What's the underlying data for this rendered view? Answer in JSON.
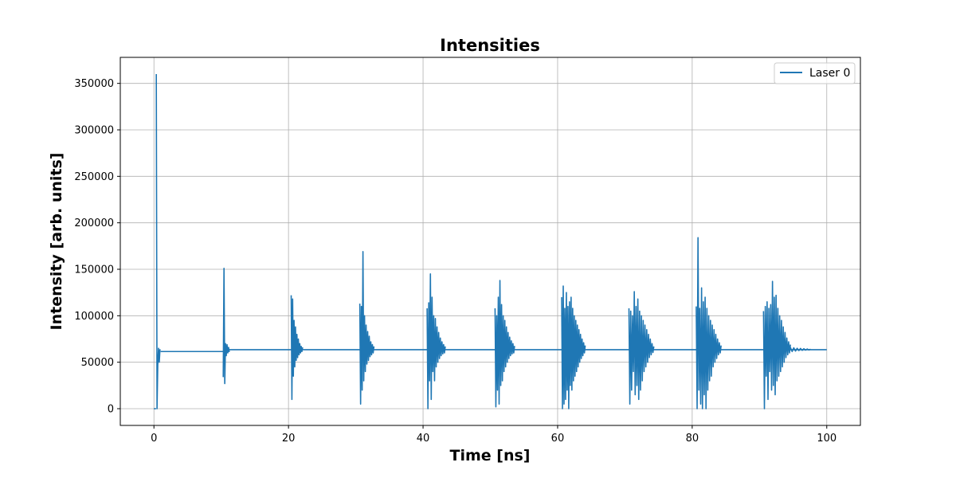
{
  "chart_data": {
    "type": "line",
    "title": "Intensities",
    "xlabel": "Time [ns]",
    "ylabel": "Intensity [arb. units]",
    "xlim": [
      -5,
      105
    ],
    "ylim": [
      -18000,
      378000
    ],
    "xticks": [
      0,
      20,
      40,
      60,
      80,
      100
    ],
    "yticks": [
      0,
      50000,
      100000,
      150000,
      200000,
      250000,
      300000,
      350000
    ],
    "grid": true,
    "legend_position": "top-right",
    "series": [
      {
        "name": "Laser 0",
        "color": "#1f77b4",
        "baseline_segments": [
          {
            "x": [
              0,
              0.3
            ],
            "y": 0
          },
          {
            "x": [
              1.0,
              10.3
            ],
            "y": 61500
          },
          {
            "x": [
              10.3,
              100
            ],
            "y": 63500
          }
        ],
        "bursts": [
          {
            "start": 0.35,
            "end": 0.9,
            "peaks": [
              360000,
              0,
              48000,
              65000,
              50000,
              64000
            ]
          },
          {
            "start": 10.3,
            "end": 11.2,
            "peaks": [
              34000,
              151000,
              27000,
              70000,
              57000,
              69000,
              60000,
              66000,
              61000
            ]
          },
          {
            "start": 20.4,
            "end": 22.1,
            "peaks": [
              122000,
              10000,
              118000,
              35000,
              95000,
              45000,
              88000,
              52000,
              80000,
              55000,
              75000,
              58000,
              70000,
              60000,
              67000,
              61500,
              66000
            ]
          },
          {
            "start": 30.6,
            "end": 32.7,
            "peaks": [
              113000,
              5000,
              110000,
              20000,
              169000,
              30000,
              100000,
              40000,
              90000,
              48000,
              83000,
              52000,
              78000,
              56000,
              72000,
              58000,
              69000,
              60000,
              67000
            ]
          },
          {
            "start": 40.6,
            "end": 43.3,
            "peaks": [
              108000,
              0,
              114000,
              30000,
              145000,
              10000,
              120000,
              40000,
              100000,
              30000,
              97000,
              45000,
              88000,
              50000,
              82000,
              54000,
              76000,
              57000,
              72000,
              59000,
              69000,
              60000,
              67000
            ]
          },
          {
            "start": 50.7,
            "end": 53.6,
            "peaks": [
              108000,
              2000,
              100000,
              20000,
              120000,
              5000,
              138000,
              25000,
              112000,
              30000,
              100000,
              40000,
              95000,
              45000,
              88000,
              50000,
              82000,
              54000,
              77000,
              57000,
              73000,
              59000,
              70000,
              60000,
              67500
            ]
          },
          {
            "start": 60.6,
            "end": 64.1,
            "peaks": [
              120000,
              0,
              132000,
              5000,
              108000,
              10000,
              125000,
              20000,
              110000,
              0,
              115000,
              25000,
              120000,
              20000,
              108000,
              30000,
              100000,
              35000,
              95000,
              40000,
              90000,
              45000,
              85000,
              50000,
              80000,
              54000,
              75000,
              57000,
              71000,
              60000,
              68000
            ]
          },
          {
            "start": 70.6,
            "end": 74.3,
            "peaks": [
              108000,
              5000,
              105000,
              20000,
              100000,
              40000,
              126000,
              15000,
              110000,
              25000,
              118000,
              10000,
              105000,
              20000,
              100000,
              30000,
              95000,
              40000,
              90000,
              45000,
              85000,
              50000,
              80000,
              55000,
              75000,
              58000,
              70000,
              60500,
              67000
            ]
          },
          {
            "start": 80.6,
            "end": 84.3,
            "peaks": [
              110000,
              0,
              184000,
              20000,
              108000,
              5000,
              130000,
              0,
              115000,
              15000,
              120000,
              0,
              108000,
              20000,
              100000,
              30000,
              95000,
              35000,
              90000,
              45000,
              85000,
              50000,
              80000,
              54000,
              75000,
              58000,
              71000,
              60000,
              68000
            ]
          },
          {
            "start": 90.6,
            "end": 94.6,
            "peaks": [
              105000,
              0,
              110000,
              35000,
              115000,
              10000,
              108000,
              40000,
              112000,
              20000,
              137000,
              25000,
              120000,
              15000,
              122000,
              30000,
              108000,
              35000,
              100000,
              40000,
              95000,
              45000,
              88000,
              50000,
              82000,
              55000,
              76000,
              58000,
              72000,
              60000,
              69000
            ]
          },
          {
            "start": 94.6,
            "end": 97.6,
            "peaks": [
              66000,
              61500,
              65500,
              62000,
              65000,
              62500,
              64800,
              62800,
              64500,
              63000,
              64200,
              63200,
              64000
            ]
          }
        ]
      }
    ]
  }
}
